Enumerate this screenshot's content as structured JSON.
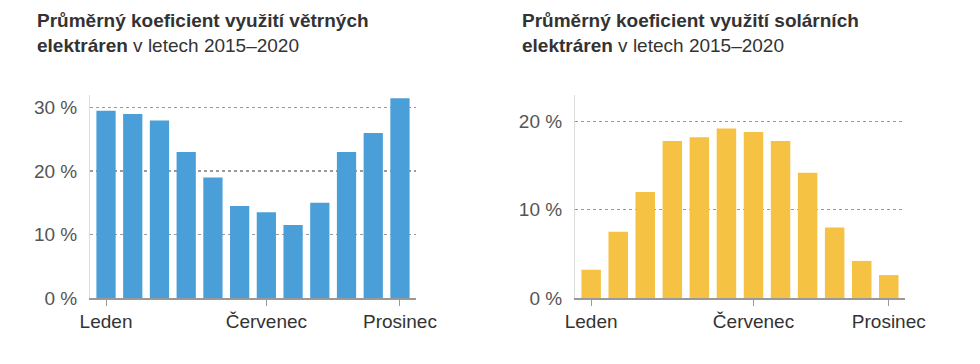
{
  "chart_data": [
    {
      "type": "bar",
      "title": [
        "Průměrný koeficient využití větrných",
        "elektráren v letech 2015–2020"
      ],
      "categories": [
        "Leden",
        null,
        null,
        null,
        null,
        null,
        "Červenec",
        null,
        null,
        null,
        null,
        "Prosinec"
      ],
      "values": [
        29.5,
        29,
        28,
        23,
        19,
        14.5,
        13.5,
        11.5,
        15,
        23,
        26,
        31.5
      ],
      "color": "#4a9fd9",
      "ylim": [
        0,
        32
      ],
      "yticks": [
        {
          "value": 0,
          "label": "0 %"
        },
        {
          "value": 10,
          "label": "10 %"
        },
        {
          "value": 20,
          "label": "20 %"
        },
        {
          "value": 30,
          "label": "30 %"
        }
      ],
      "grid": true
    },
    {
      "type": "bar",
      "title": [
        "Průměrný koeficient využití solárních",
        "elektráren v letech 2015–2020"
      ],
      "categories": [
        "Leden",
        null,
        null,
        null,
        null,
        null,
        "Červenec",
        null,
        null,
        null,
        null,
        "Prosinec"
      ],
      "values": [
        3.2,
        7.5,
        12,
        17.8,
        18.2,
        19.2,
        18.8,
        17.8,
        14.2,
        8,
        4.2,
        2.6
      ],
      "color": "#f5c243",
      "ylim": [
        0,
        23
      ],
      "yticks": [
        {
          "value": 0,
          "label": "0 %"
        },
        {
          "value": 10,
          "label": "10 %"
        },
        {
          "value": 20,
          "label": "20 %"
        }
      ],
      "grid": true
    }
  ]
}
